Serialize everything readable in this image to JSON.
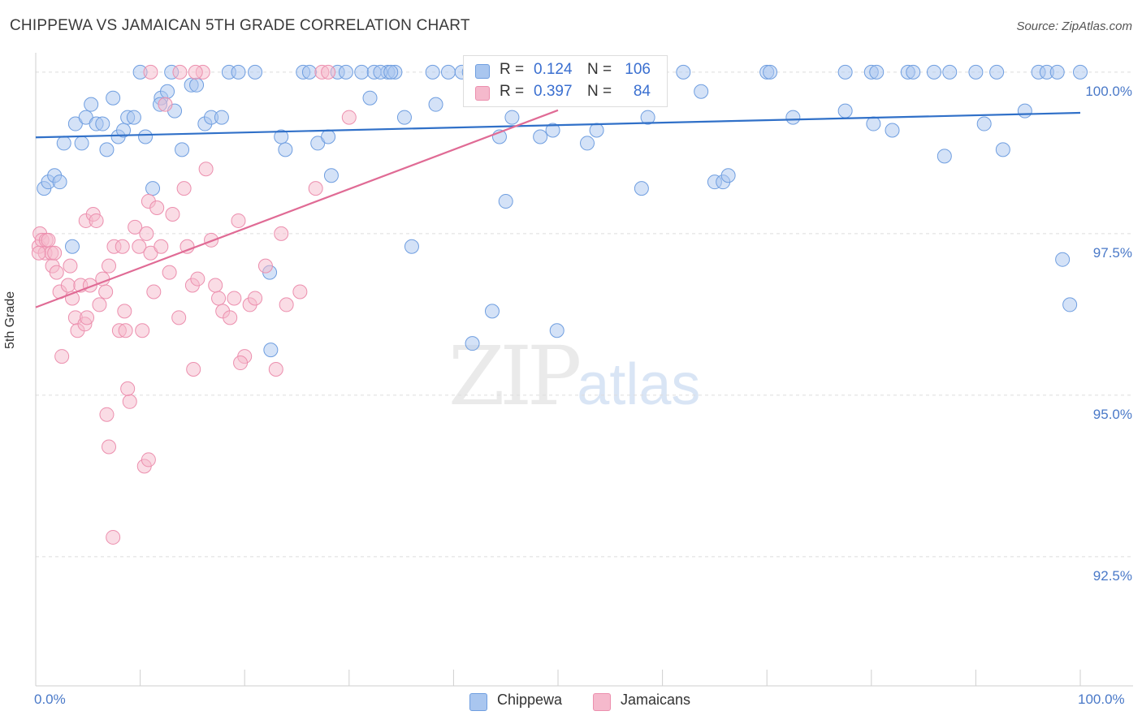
{
  "title": "CHIPPEWA VS JAMAICAN 5TH GRADE CORRELATION CHART",
  "source": "Source: ZipAtlas.com",
  "watermark": {
    "zip": "ZIP",
    "atlas": "atlas"
  },
  "stats": [
    {
      "r_label": "R =",
      "r_value": "0.124",
      "n_label": "N =",
      "n_value": "106"
    },
    {
      "r_label": "R =",
      "r_value": "0.397",
      "n_label": "N =",
      "n_value": "84"
    }
  ],
  "legend": {
    "series1": "Chippewa",
    "series2": "Jamaicans"
  },
  "colors": {
    "chippewa_fill": "#a9c6ef",
    "chippewa_stroke": "#6f9ee0",
    "chippewa_line": "#3070c8",
    "jamaican_fill": "#f5b9cc",
    "jamaican_stroke": "#ec8fae",
    "jamaican_line": "#e06b95",
    "grid": "#dddddd",
    "tick_label": "#4a79c8"
  },
  "chart_data": {
    "type": "scatter",
    "title": "CHIPPEWA VS JAMAICAN 5TH GRADE CORRELATION CHART",
    "ylabel": "5th Grade",
    "xlabel": "",
    "xlim": [
      0,
      100
    ],
    "ylim": [
      90.5,
      100.3
    ],
    "yticks": [
      92.5,
      95.0,
      97.5,
      100.0
    ],
    "ytick_labels": [
      "92.5%",
      "95.0%",
      "97.5%",
      "100.0%"
    ],
    "xtick_labels": [
      "0.0%",
      "100.0%"
    ],
    "grid": true,
    "legend_position": "bottom-center",
    "series": [
      {
        "name": "Chippewa",
        "trend": {
          "x": [
            0,
            100
          ],
          "y": [
            98.99,
            99.37
          ]
        },
        "points": [
          [
            0.8,
            98.2
          ],
          [
            1.2,
            98.3
          ],
          [
            1.8,
            98.4
          ],
          [
            2.3,
            98.3
          ],
          [
            2.7,
            98.9
          ],
          [
            3.5,
            97.3
          ],
          [
            3.8,
            99.2
          ],
          [
            4.4,
            98.9
          ],
          [
            4.8,
            99.3
          ],
          [
            5.3,
            99.5
          ],
          [
            5.8,
            99.2
          ],
          [
            6.4,
            99.2
          ],
          [
            6.8,
            98.8
          ],
          [
            7.4,
            99.6
          ],
          [
            7.9,
            99.0
          ],
          [
            8.4,
            99.1
          ],
          [
            8.8,
            99.3
          ],
          [
            9.4,
            99.3
          ],
          [
            10.0,
            100.0
          ],
          [
            10.5,
            99.0
          ],
          [
            11.2,
            98.2
          ],
          [
            12.0,
            99.6
          ],
          [
            12.6,
            99.7
          ],
          [
            13.3,
            99.4
          ],
          [
            14.0,
            98.8
          ],
          [
            13.0,
            100.0
          ],
          [
            11.9,
            99.5
          ],
          [
            14.9,
            99.8
          ],
          [
            15.4,
            99.8
          ],
          [
            16.2,
            99.2
          ],
          [
            16.8,
            99.3
          ],
          [
            17.8,
            99.3
          ],
          [
            18.5,
            100.0
          ],
          [
            19.4,
            100.0
          ],
          [
            21.0,
            100.0
          ],
          [
            22.4,
            96.9
          ],
          [
            22.5,
            95.7
          ],
          [
            23.5,
            99.0
          ],
          [
            23.9,
            98.8
          ],
          [
            25.6,
            100.0
          ],
          [
            26.2,
            100.0
          ],
          [
            27.0,
            98.9
          ],
          [
            28.0,
            99.0
          ],
          [
            28.3,
            98.4
          ],
          [
            28.9,
            100.0
          ],
          [
            29.7,
            100.0
          ],
          [
            31.2,
            100.0
          ],
          [
            32.0,
            99.6
          ],
          [
            32.4,
            100.0
          ],
          [
            33.7,
            100.0
          ],
          [
            33.0,
            100.0
          ],
          [
            34.4,
            100.0
          ],
          [
            35.3,
            99.3
          ],
          [
            34.0,
            100.0
          ],
          [
            36.0,
            97.3
          ],
          [
            38.0,
            100.0
          ],
          [
            38.3,
            99.5
          ],
          [
            39.5,
            100.0
          ],
          [
            40.8,
            100.0
          ],
          [
            41.5,
            100.0
          ],
          [
            41.8,
            95.8
          ],
          [
            43.9,
            100.0
          ],
          [
            43.7,
            96.3
          ],
          [
            44.4,
            99.0
          ],
          [
            45.0,
            98.0
          ],
          [
            45.6,
            99.3
          ],
          [
            48.3,
            99.0
          ],
          [
            49.5,
            99.1
          ],
          [
            49.9,
            96.0
          ],
          [
            51.2,
            100.0
          ],
          [
            51.6,
            100.0
          ],
          [
            52.8,
            98.9
          ],
          [
            53.7,
            99.1
          ],
          [
            56.0,
            100.0
          ],
          [
            58.0,
            98.2
          ],
          [
            58.6,
            99.3
          ],
          [
            62.0,
            100.0
          ],
          [
            63.7,
            99.7
          ],
          [
            65.0,
            98.3
          ],
          [
            65.8,
            98.3
          ],
          [
            66.3,
            98.4
          ],
          [
            70.0,
            100.0
          ],
          [
            70.3,
            100.0
          ],
          [
            72.5,
            99.3
          ],
          [
            77.5,
            100.0
          ],
          [
            77.5,
            99.4
          ],
          [
            80.0,
            100.0
          ],
          [
            80.5,
            100.0
          ],
          [
            80.2,
            99.2
          ],
          [
            82.0,
            99.1
          ],
          [
            83.5,
            100.0
          ],
          [
            84.0,
            100.0
          ],
          [
            86.0,
            100.0
          ],
          [
            87.5,
            100.0
          ],
          [
            87.0,
            98.7
          ],
          [
            90.0,
            100.0
          ],
          [
            90.8,
            99.2
          ],
          [
            92.0,
            100.0
          ],
          [
            92.6,
            98.8
          ],
          [
            94.7,
            99.4
          ],
          [
            96.0,
            100.0
          ],
          [
            96.8,
            100.0
          ],
          [
            97.8,
            100.0
          ],
          [
            98.3,
            97.1
          ],
          [
            99.0,
            96.4
          ],
          [
            100.0,
            100.0
          ]
        ]
      },
      {
        "name": "Jamaicans",
        "trend": {
          "x": [
            0,
            50
          ],
          "y": [
            96.36,
            99.41
          ]
        },
        "points": [
          [
            0.3,
            97.3
          ],
          [
            0.4,
            97.5
          ],
          [
            0.6,
            97.4
          ],
          [
            0.9,
            97.2
          ],
          [
            1.0,
            97.4
          ],
          [
            1.2,
            97.4
          ],
          [
            1.5,
            97.2
          ],
          [
            1.6,
            97.0
          ],
          [
            1.8,
            97.2
          ],
          [
            2.0,
            96.9
          ],
          [
            2.3,
            96.6
          ],
          [
            2.5,
            95.6
          ],
          [
            3.1,
            96.7
          ],
          [
            3.3,
            97.0
          ],
          [
            3.5,
            96.5
          ],
          [
            3.8,
            96.2
          ],
          [
            4.0,
            96.0
          ],
          [
            4.3,
            96.7
          ],
          [
            4.7,
            96.1
          ],
          [
            4.9,
            96.2
          ],
          [
            4.8,
            97.7
          ],
          [
            5.2,
            96.7
          ],
          [
            5.5,
            97.8
          ],
          [
            5.8,
            97.7
          ],
          [
            6.1,
            96.4
          ],
          [
            6.4,
            96.8
          ],
          [
            6.7,
            96.6
          ],
          [
            7.0,
            97.0
          ],
          [
            7.5,
            97.3
          ],
          [
            7.4,
            92.8
          ],
          [
            7.0,
            94.2
          ],
          [
            6.8,
            94.7
          ],
          [
            8.0,
            96.0
          ],
          [
            8.3,
            97.3
          ],
          [
            8.6,
            96.0
          ],
          [
            8.5,
            96.3
          ],
          [
            9.0,
            94.9
          ],
          [
            8.8,
            95.1
          ],
          [
            9.5,
            97.6
          ],
          [
            9.9,
            97.3
          ],
          [
            10.2,
            96.0
          ],
          [
            10.6,
            97.5
          ],
          [
            10.8,
            98.0
          ],
          [
            11.0,
            97.2
          ],
          [
            10.4,
            93.9
          ],
          [
            10.8,
            94.0
          ],
          [
            11.3,
            96.6
          ],
          [
            11.6,
            97.9
          ],
          [
            12.0,
            97.3
          ],
          [
            12.4,
            99.5
          ],
          [
            12.8,
            96.9
          ],
          [
            13.1,
            97.8
          ],
          [
            13.7,
            96.2
          ],
          [
            14.2,
            98.2
          ],
          [
            14.5,
            97.3
          ],
          [
            15.0,
            96.7
          ],
          [
            15.5,
            96.8
          ],
          [
            15.1,
            95.4
          ],
          [
            16.0,
            100.0
          ],
          [
            16.3,
            98.5
          ],
          [
            16.8,
            97.4
          ],
          [
            17.5,
            96.5
          ],
          [
            17.2,
            96.7
          ],
          [
            17.9,
            96.3
          ],
          [
            18.6,
            96.2
          ],
          [
            19.0,
            96.5
          ],
          [
            19.4,
            97.7
          ],
          [
            20.0,
            95.6
          ],
          [
            19.6,
            95.5
          ],
          [
            20.5,
            96.4
          ],
          [
            21.0,
            96.5
          ],
          [
            22.0,
            97.0
          ],
          [
            23.0,
            95.4
          ],
          [
            23.5,
            97.5
          ],
          [
            24.0,
            96.4
          ],
          [
            25.3,
            96.6
          ],
          [
            26.8,
            98.2
          ],
          [
            27.4,
            100.0
          ],
          [
            28.0,
            100.0
          ],
          [
            30.0,
            99.3
          ],
          [
            13.8,
            100.0
          ],
          [
            15.3,
            100.0
          ],
          [
            11.0,
            100.0
          ],
          [
            0.3,
            97.2
          ]
        ]
      }
    ]
  }
}
